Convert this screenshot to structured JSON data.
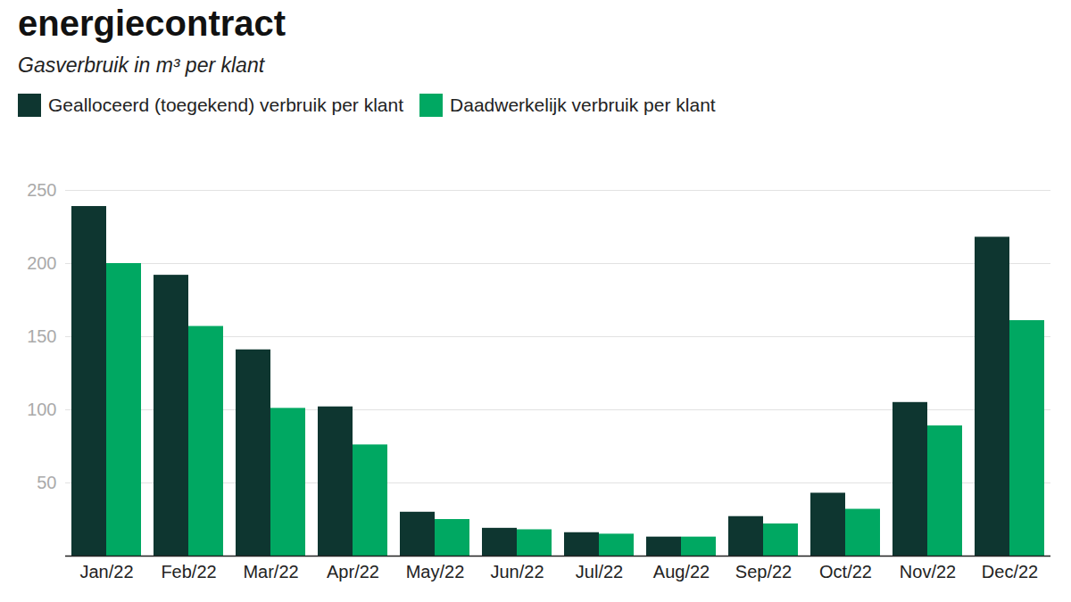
{
  "chart_data": {
    "type": "bar",
    "title": "energiecontract",
    "subtitle": "Gasverbruik in m³ per klant",
    "categories": [
      "Jan/22",
      "Feb/22",
      "Mar/22",
      "Apr/22",
      "May/22",
      "Jun/22",
      "Jul/22",
      "Aug/22",
      "Sep/22",
      "Oct/22",
      "Nov/22",
      "Dec/22"
    ],
    "series": [
      {
        "name": "Gealloceerd (toegekend) verbruik per klant",
        "color": "#0e3630",
        "values": [
          239,
          192,
          141,
          102,
          30,
          19,
          16,
          13,
          27,
          43,
          105,
          218
        ]
      },
      {
        "name": "Daadwerkelijk verbruik per klant",
        "color": "#00a862",
        "values": [
          200,
          157,
          101,
          76,
          25,
          18,
          15,
          13,
          22,
          32,
          89,
          161
        ]
      }
    ],
    "ylim": [
      0,
      250
    ],
    "yticks": [
      50,
      100,
      150,
      200,
      250
    ],
    "grid": true,
    "legend": "top-left"
  }
}
